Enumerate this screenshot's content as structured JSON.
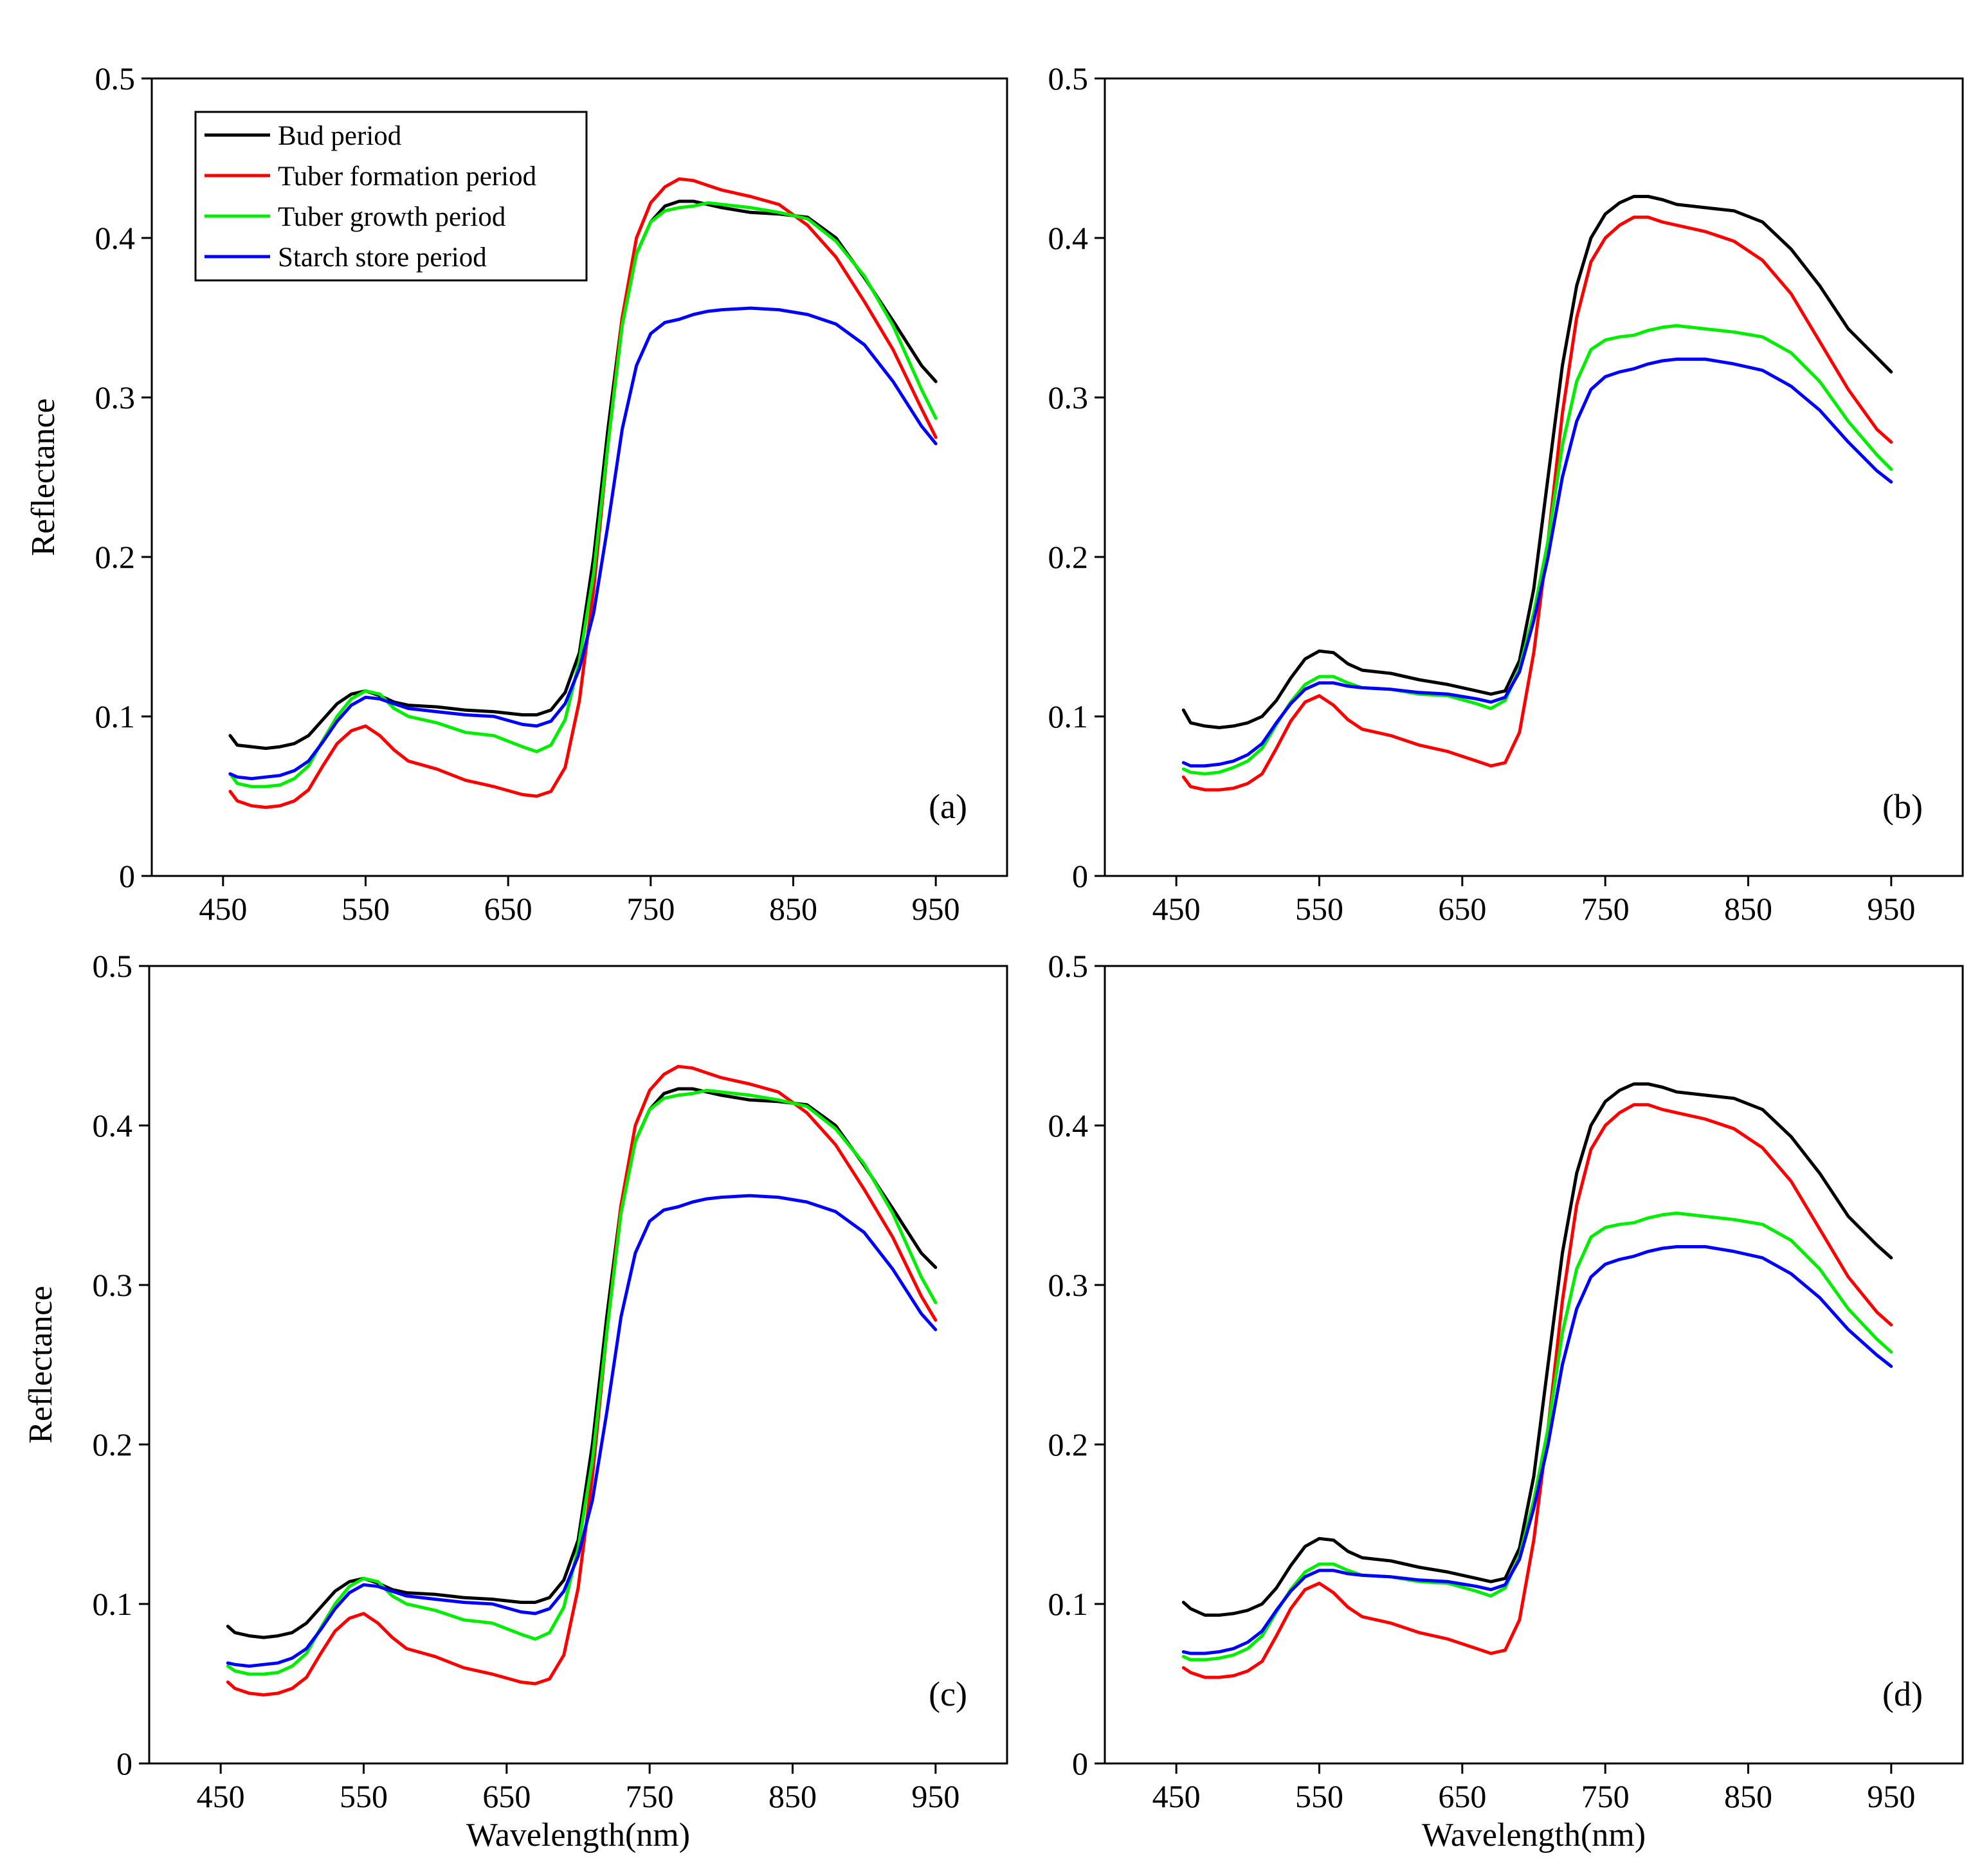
{
  "figure": {
    "legend": [
      {
        "label": "Bud period",
        "color": "#000000"
      },
      {
        "label": "Tuber formation period",
        "color": "#ff0000"
      },
      {
        "label": "Tuber growth period",
        "color": "#00ee00"
      },
      {
        "label": "Starch store period",
        "color": "#0000ff"
      }
    ]
  },
  "chart_data": [
    {
      "type": "line",
      "panel_label": "(a)",
      "xlabel": "",
      "ylabel": "Reflectance",
      "xlim": [
        400,
        1000
      ],
      "ylim": [
        0,
        0.5
      ],
      "xticks": [
        "450",
        "550",
        "650",
        "750",
        "850",
        "950"
      ],
      "yticks": [
        "0",
        "0.1",
        "0.2",
        "0.3",
        "0.4",
        "0.5"
      ],
      "legend_position": "top-left",
      "x": [
        455,
        460,
        470,
        480,
        490,
        500,
        510,
        520,
        530,
        540,
        550,
        560,
        570,
        580,
        600,
        620,
        640,
        660,
        670,
        680,
        690,
        700,
        710,
        720,
        730,
        740,
        750,
        760,
        770,
        780,
        790,
        800,
        820,
        840,
        860,
        880,
        900,
        920,
        940,
        950
      ],
      "series": [
        {
          "name": "Bud period",
          "values": [
            0.088,
            0.082,
            0.081,
            0.08,
            0.081,
            0.083,
            0.088,
            0.098,
            0.108,
            0.114,
            0.116,
            0.113,
            0.109,
            0.107,
            0.106,
            0.104,
            0.103,
            0.101,
            0.101,
            0.104,
            0.115,
            0.14,
            0.2,
            0.28,
            0.35,
            0.39,
            0.41,
            0.42,
            0.423,
            0.423,
            0.421,
            0.419,
            0.416,
            0.415,
            0.413,
            0.4,
            0.375,
            0.348,
            0.32,
            0.31
          ]
        },
        {
          "name": "Tuber formation period",
          "values": [
            0.053,
            0.047,
            0.044,
            0.043,
            0.044,
            0.047,
            0.054,
            0.069,
            0.083,
            0.091,
            0.094,
            0.088,
            0.079,
            0.072,
            0.067,
            0.06,
            0.056,
            0.051,
            0.05,
            0.053,
            0.068,
            0.11,
            0.18,
            0.27,
            0.35,
            0.4,
            0.422,
            0.432,
            0.437,
            0.436,
            0.433,
            0.43,
            0.426,
            0.421,
            0.408,
            0.388,
            0.36,
            0.33,
            0.293,
            0.275
          ]
        },
        {
          "name": "Tuber growth period",
          "values": [
            0.064,
            0.058,
            0.056,
            0.056,
            0.057,
            0.061,
            0.069,
            0.085,
            0.1,
            0.111,
            0.116,
            0.114,
            0.105,
            0.1,
            0.096,
            0.09,
            0.088,
            0.081,
            0.078,
            0.082,
            0.098,
            0.135,
            0.19,
            0.27,
            0.345,
            0.39,
            0.41,
            0.417,
            0.419,
            0.42,
            0.422,
            0.421,
            0.419,
            0.416,
            0.412,
            0.398,
            0.376,
            0.345,
            0.305,
            0.287
          ]
        },
        {
          "name": "Starch store period",
          "values": [
            0.064,
            0.062,
            0.061,
            0.062,
            0.063,
            0.066,
            0.072,
            0.084,
            0.097,
            0.107,
            0.112,
            0.111,
            0.108,
            0.105,
            0.103,
            0.101,
            0.1,
            0.095,
            0.094,
            0.097,
            0.108,
            0.13,
            0.165,
            0.22,
            0.28,
            0.32,
            0.34,
            0.347,
            0.349,
            0.352,
            0.354,
            0.355,
            0.356,
            0.355,
            0.352,
            0.346,
            0.333,
            0.31,
            0.282,
            0.271
          ]
        }
      ]
    },
    {
      "type": "line",
      "panel_label": "(b)",
      "xlabel": "",
      "ylabel": "",
      "xlim": [
        400,
        1000
      ],
      "ylim": [
        0,
        0.5
      ],
      "xticks": [
        "450",
        "550",
        "650",
        "750",
        "850",
        "950"
      ],
      "yticks": [
        "0",
        "0.1",
        "0.2",
        "0.3",
        "0.4",
        "0.5"
      ],
      "x": [
        455,
        460,
        470,
        480,
        490,
        500,
        510,
        520,
        530,
        540,
        550,
        560,
        570,
        580,
        600,
        620,
        640,
        660,
        670,
        680,
        690,
        700,
        710,
        720,
        730,
        740,
        750,
        760,
        770,
        780,
        790,
        800,
        820,
        840,
        860,
        880,
        900,
        920,
        940,
        950
      ],
      "series": [
        {
          "name": "Bud period",
          "values": [
            0.104,
            0.096,
            0.094,
            0.093,
            0.094,
            0.096,
            0.1,
            0.11,
            0.124,
            0.136,
            0.141,
            0.14,
            0.133,
            0.129,
            0.127,
            0.123,
            0.12,
            0.116,
            0.114,
            0.116,
            0.135,
            0.18,
            0.25,
            0.32,
            0.37,
            0.4,
            0.415,
            0.422,
            0.426,
            0.426,
            0.424,
            0.421,
            0.419,
            0.417,
            0.41,
            0.393,
            0.37,
            0.343,
            0.325,
            0.316
          ]
        },
        {
          "name": "Tuber formation period",
          "values": [
            0.062,
            0.056,
            0.054,
            0.054,
            0.055,
            0.058,
            0.064,
            0.08,
            0.097,
            0.109,
            0.113,
            0.107,
            0.098,
            0.092,
            0.088,
            0.082,
            0.078,
            0.072,
            0.069,
            0.071,
            0.09,
            0.14,
            0.21,
            0.29,
            0.35,
            0.385,
            0.4,
            0.408,
            0.413,
            0.413,
            0.41,
            0.408,
            0.404,
            0.398,
            0.386,
            0.365,
            0.335,
            0.305,
            0.28,
            0.272
          ]
        },
        {
          "name": "Tuber growth period",
          "values": [
            0.067,
            0.065,
            0.064,
            0.065,
            0.068,
            0.072,
            0.08,
            0.095,
            0.109,
            0.12,
            0.125,
            0.125,
            0.121,
            0.118,
            0.117,
            0.114,
            0.113,
            0.108,
            0.105,
            0.11,
            0.13,
            0.165,
            0.21,
            0.27,
            0.31,
            0.33,
            0.336,
            0.338,
            0.339,
            0.342,
            0.344,
            0.345,
            0.343,
            0.341,
            0.338,
            0.328,
            0.31,
            0.285,
            0.264,
            0.255
          ]
        },
        {
          "name": "Starch store period",
          "values": [
            0.071,
            0.069,
            0.069,
            0.07,
            0.072,
            0.076,
            0.083,
            0.096,
            0.108,
            0.117,
            0.121,
            0.121,
            0.119,
            0.118,
            0.117,
            0.115,
            0.114,
            0.111,
            0.109,
            0.112,
            0.128,
            0.16,
            0.2,
            0.25,
            0.285,
            0.305,
            0.313,
            0.316,
            0.318,
            0.321,
            0.323,
            0.324,
            0.324,
            0.321,
            0.317,
            0.307,
            0.292,
            0.272,
            0.254,
            0.247
          ]
        }
      ]
    },
    {
      "type": "line",
      "panel_label": "(c)",
      "xlabel": "Wavelength(nm)",
      "ylabel": "Reflectance",
      "xlim": [
        400,
        1000
      ],
      "ylim": [
        0,
        0.5
      ],
      "xticks": [
        "450",
        "550",
        "650",
        "750",
        "850",
        "950"
      ],
      "yticks": [
        "0",
        "0.1",
        "0.2",
        "0.3",
        "0.4",
        "0.5"
      ],
      "x": [
        455,
        460,
        470,
        480,
        490,
        500,
        510,
        520,
        530,
        540,
        550,
        560,
        570,
        580,
        600,
        620,
        640,
        660,
        670,
        680,
        690,
        700,
        710,
        720,
        730,
        740,
        750,
        760,
        770,
        780,
        790,
        800,
        820,
        840,
        860,
        880,
        900,
        920,
        940,
        950
      ],
      "series": [
        {
          "name": "Bud period",
          "values": [
            0.086,
            0.082,
            0.08,
            0.079,
            0.08,
            0.082,
            0.088,
            0.098,
            0.108,
            0.114,
            0.116,
            0.113,
            0.109,
            0.107,
            0.106,
            0.104,
            0.103,
            0.101,
            0.101,
            0.104,
            0.115,
            0.14,
            0.2,
            0.28,
            0.35,
            0.39,
            0.41,
            0.42,
            0.423,
            0.423,
            0.421,
            0.419,
            0.416,
            0.415,
            0.413,
            0.4,
            0.375,
            0.348,
            0.32,
            0.311
          ]
        },
        {
          "name": "Tuber formation period",
          "values": [
            0.051,
            0.047,
            0.044,
            0.043,
            0.044,
            0.047,
            0.054,
            0.069,
            0.083,
            0.091,
            0.094,
            0.088,
            0.079,
            0.072,
            0.067,
            0.06,
            0.056,
            0.051,
            0.05,
            0.053,
            0.068,
            0.11,
            0.18,
            0.27,
            0.35,
            0.4,
            0.422,
            0.432,
            0.437,
            0.436,
            0.433,
            0.43,
            0.426,
            0.421,
            0.408,
            0.388,
            0.36,
            0.33,
            0.293,
            0.278
          ]
        },
        {
          "name": "Tuber growth period",
          "values": [
            0.061,
            0.058,
            0.056,
            0.056,
            0.057,
            0.061,
            0.069,
            0.085,
            0.1,
            0.111,
            0.116,
            0.114,
            0.105,
            0.1,
            0.096,
            0.09,
            0.088,
            0.081,
            0.078,
            0.082,
            0.098,
            0.135,
            0.19,
            0.27,
            0.345,
            0.39,
            0.41,
            0.417,
            0.419,
            0.42,
            0.422,
            0.421,
            0.419,
            0.416,
            0.412,
            0.398,
            0.376,
            0.345,
            0.305,
            0.289
          ]
        },
        {
          "name": "Starch store period",
          "values": [
            0.063,
            0.062,
            0.061,
            0.062,
            0.063,
            0.066,
            0.072,
            0.084,
            0.097,
            0.107,
            0.112,
            0.111,
            0.108,
            0.105,
            0.103,
            0.101,
            0.1,
            0.095,
            0.094,
            0.097,
            0.108,
            0.13,
            0.165,
            0.22,
            0.28,
            0.32,
            0.34,
            0.347,
            0.349,
            0.352,
            0.354,
            0.355,
            0.356,
            0.355,
            0.352,
            0.346,
            0.333,
            0.31,
            0.282,
            0.272
          ]
        }
      ]
    },
    {
      "type": "line",
      "panel_label": "(d)",
      "xlabel": "Wavelength(nm)",
      "ylabel": "",
      "xlim": [
        400,
        1000
      ],
      "ylim": [
        0,
        0.5
      ],
      "xticks": [
        "450",
        "550",
        "650",
        "750",
        "850",
        "950"
      ],
      "yticks": [
        "0",
        "0.1",
        "0.2",
        "0.3",
        "0.4",
        "0.5"
      ],
      "x": [
        455,
        460,
        470,
        480,
        490,
        500,
        510,
        520,
        530,
        540,
        550,
        560,
        570,
        580,
        600,
        620,
        640,
        660,
        670,
        680,
        690,
        700,
        710,
        720,
        730,
        740,
        750,
        760,
        770,
        780,
        790,
        800,
        820,
        840,
        860,
        880,
        900,
        920,
        940,
        950
      ],
      "series": [
        {
          "name": "Bud period",
          "values": [
            0.101,
            0.097,
            0.093,
            0.093,
            0.094,
            0.096,
            0.1,
            0.11,
            0.124,
            0.136,
            0.141,
            0.14,
            0.133,
            0.129,
            0.127,
            0.123,
            0.12,
            0.116,
            0.114,
            0.116,
            0.135,
            0.18,
            0.25,
            0.32,
            0.37,
            0.4,
            0.415,
            0.422,
            0.426,
            0.426,
            0.424,
            0.421,
            0.419,
            0.417,
            0.41,
            0.393,
            0.37,
            0.343,
            0.325,
            0.317
          ]
        },
        {
          "name": "Tuber formation period",
          "values": [
            0.06,
            0.057,
            0.054,
            0.054,
            0.055,
            0.058,
            0.064,
            0.08,
            0.097,
            0.109,
            0.113,
            0.107,
            0.098,
            0.092,
            0.088,
            0.082,
            0.078,
            0.072,
            0.069,
            0.071,
            0.09,
            0.14,
            0.21,
            0.29,
            0.35,
            0.385,
            0.4,
            0.408,
            0.413,
            0.413,
            0.41,
            0.408,
            0.404,
            0.398,
            0.386,
            0.365,
            0.335,
            0.305,
            0.283,
            0.275
          ]
        },
        {
          "name": "Tuber growth period",
          "values": [
            0.067,
            0.065,
            0.065,
            0.066,
            0.068,
            0.072,
            0.08,
            0.095,
            0.109,
            0.12,
            0.125,
            0.125,
            0.121,
            0.118,
            0.117,
            0.114,
            0.113,
            0.108,
            0.105,
            0.11,
            0.13,
            0.165,
            0.21,
            0.27,
            0.31,
            0.33,
            0.336,
            0.338,
            0.339,
            0.342,
            0.344,
            0.345,
            0.343,
            0.341,
            0.338,
            0.328,
            0.31,
            0.285,
            0.266,
            0.258
          ]
        },
        {
          "name": "Starch store period",
          "values": [
            0.07,
            0.069,
            0.069,
            0.07,
            0.072,
            0.076,
            0.083,
            0.096,
            0.108,
            0.117,
            0.121,
            0.121,
            0.119,
            0.118,
            0.117,
            0.115,
            0.114,
            0.111,
            0.109,
            0.112,
            0.128,
            0.16,
            0.2,
            0.25,
            0.285,
            0.305,
            0.313,
            0.316,
            0.318,
            0.321,
            0.323,
            0.324,
            0.324,
            0.321,
            0.317,
            0.307,
            0.292,
            0.272,
            0.256,
            0.249
          ]
        }
      ]
    }
  ]
}
